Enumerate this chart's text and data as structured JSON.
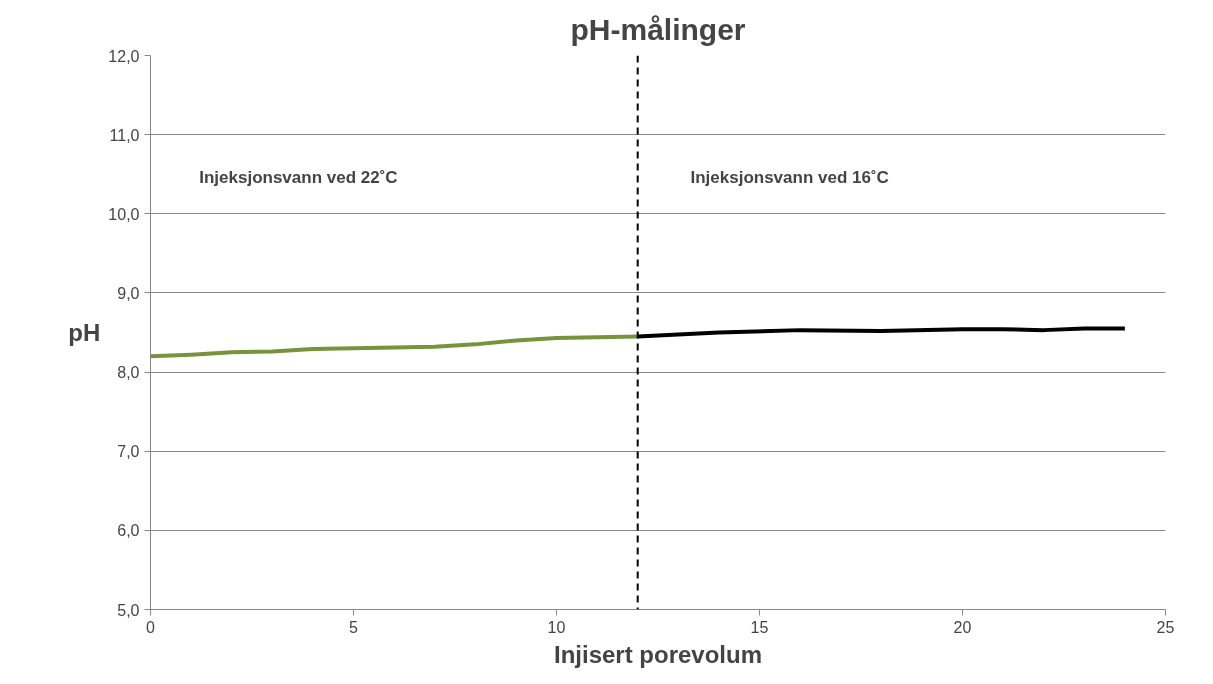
{
  "chart_data": {
    "type": "line",
    "title": "pH-målinger",
    "xlabel": "Injisert porevolum",
    "ylabel": "pH",
    "xlim": [
      0,
      25
    ],
    "xticks": [
      0,
      5,
      10,
      15,
      20,
      25
    ],
    "ylim": [
      5,
      12
    ],
    "yticks": [
      {
        "value": 5,
        "label": "5,0"
      },
      {
        "value": 6,
        "label": "6,0"
      },
      {
        "value": 7,
        "label": "7,0"
      },
      {
        "value": 8,
        "label": "8,0"
      },
      {
        "value": 9,
        "label": "9,0"
      },
      {
        "value": 10,
        "label": "10,0"
      },
      {
        "value": 11,
        "label": "11,0"
      },
      {
        "value": 12,
        "label": "12,0"
      }
    ],
    "grid": "y",
    "marker": "none",
    "line_style": "solid",
    "series": [
      {
        "color": "#77933c",
        "x": [
          0,
          1,
          2,
          3,
          4,
          5,
          6,
          7,
          8,
          9,
          10,
          11,
          12
        ],
        "values": [
          8.2,
          8.22,
          8.25,
          8.26,
          8.29,
          8.3,
          8.31,
          8.32,
          8.35,
          8.4,
          8.43,
          8.44,
          8.45
        ]
      },
      {
        "color": "#000000",
        "x": [
          12,
          14,
          16,
          18,
          20,
          21,
          22,
          23,
          24
        ],
        "values": [
          8.45,
          8.5,
          8.53,
          8.52,
          8.54,
          8.54,
          8.53,
          8.55,
          8.55
        ]
      }
    ],
    "ref_lines": [
      {
        "axis": "x",
        "value": 12,
        "color": "#000000",
        "line_style": "dashed"
      }
    ],
    "annotations": [
      "Injeksjonsvann ved 22˚C",
      "Injeksjonsvann ved 16˚C"
    ]
  }
}
